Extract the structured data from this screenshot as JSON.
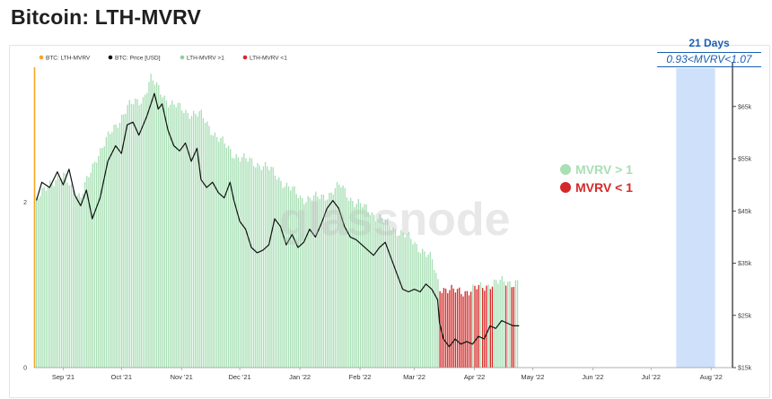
{
  "title": "Bitcoin: LTH-MVRV",
  "callout": {
    "days": "21 Days",
    "range": "0.93<MVRV<1.07"
  },
  "legend": [
    {
      "label": "BTC: LTH-MVRV",
      "color": "#f5a623",
      "muted": true
    },
    {
      "label": "BTC: Price [USD]",
      "color": "#111111",
      "muted": false
    },
    {
      "label": "LTH-MVRV >1",
      "color": "#8fd19e",
      "muted": false
    },
    {
      "label": "LTH-MVRV <1",
      "color": "#d62828",
      "muted": false
    }
  ],
  "annotation_legend": [
    {
      "label": "MVRV > 1",
      "color": "#a8dfb5"
    },
    {
      "label": "MVRV < 1",
      "color": "#d62828"
    }
  ],
  "watermark": "glassnode",
  "colors": {
    "above": "#a8dfb5",
    "below": "#d62828",
    "price": "#111111",
    "highlight": "#cfe0fb",
    "lth_line": "#f5a623"
  },
  "chart_data": {
    "type": "bar",
    "x_ticks": [
      "Sep '21",
      "Oct '21",
      "Nov '21",
      "Dec '21",
      "Jan '22",
      "Feb '22",
      "Mar '22",
      "Apr '22",
      "May '22",
      "Jun '22",
      "Jul '22",
      "Aug '22"
    ],
    "left_axis": {
      "ticks": [
        "0",
        "2"
      ],
      "ylim": [
        0,
        3.6
      ]
    },
    "right_axis": {
      "ticks": [
        "$15k",
        "$25k",
        "$35k",
        "$45k",
        "$55k",
        "$65k"
      ],
      "ylim": [
        15000,
        72000
      ],
      "scale": "linear"
    },
    "highlight_window": {
      "start": "2022-07-14",
      "end": "2022-08-03"
    },
    "mvrv_series": [
      [
        1.2,
        2.0
      ],
      [
        8.0,
        2.25
      ],
      [
        16.0,
        2.3
      ],
      [
        24.0,
        2.05
      ],
      [
        32.0,
        2.55
      ],
      [
        40.0,
        2.85
      ],
      [
        48.0,
        3.15
      ],
      [
        56.0,
        3.25
      ],
      [
        60.0,
        3.5
      ],
      [
        63.0,
        3.4
      ],
      [
        70.0,
        3.2
      ],
      [
        78.0,
        3.1
      ],
      [
        86.0,
        3.05
      ],
      [
        94.0,
        2.8
      ],
      [
        102.0,
        2.6
      ],
      [
        110.0,
        2.5
      ],
      [
        118.0,
        2.45
      ],
      [
        124.0,
        2.35
      ],
      [
        130.0,
        2.2
      ],
      [
        138.0,
        2.05
      ],
      [
        146.0,
        2.05
      ],
      [
        152.0,
        2.1
      ],
      [
        158.0,
        2.2
      ],
      [
        165.0,
        2.0
      ],
      [
        173.0,
        1.9
      ],
      [
        181.0,
        1.75
      ],
      [
        188.0,
        1.65
      ],
      [
        194.0,
        1.55
      ],
      [
        199.0,
        1.45
      ],
      [
        205.0,
        1.3
      ],
      [
        209.0,
        0.98
      ],
      [
        216.0,
        0.92
      ],
      [
        224.0,
        0.93
      ],
      [
        230.0,
        0.97
      ],
      [
        236.0,
        1.02
      ],
      [
        244.0,
        1.04
      ],
      [
        250.0,
        1.03
      ]
    ],
    "price_series": [
      [
        1.2,
        47000
      ],
      [
        4.0,
        50500
      ],
      [
        8.0,
        49500
      ],
      [
        12.0,
        52500
      ],
      [
        15.0,
        50000
      ],
      [
        18.0,
        53000
      ],
      [
        21.0,
        48000
      ],
      [
        24.0,
        46000
      ],
      [
        27.0,
        49000
      ],
      [
        30.0,
        43500
      ],
      [
        34.0,
        47500
      ],
      [
        38.0,
        54500
      ],
      [
        42.0,
        57500
      ],
      [
        45.0,
        56000
      ],
      [
        48.0,
        61500
      ],
      [
        51.0,
        62000
      ],
      [
        54.0,
        59500
      ],
      [
        58.0,
        63000
      ],
      [
        62.0,
        67500
      ],
      [
        64.0,
        64500
      ],
      [
        66.0,
        65500
      ],
      [
        69.0,
        60500
      ],
      [
        72.0,
        57500
      ],
      [
        75.0,
        56500
      ],
      [
        78.0,
        58000
      ],
      [
        81.0,
        54500
      ],
      [
        84.0,
        57000
      ],
      [
        86.0,
        51000
      ],
      [
        89.0,
        49500
      ],
      [
        92.0,
        50500
      ],
      [
        95.0,
        48500
      ],
      [
        98.0,
        47500
      ],
      [
        101.0,
        50500
      ],
      [
        103.0,
        47000
      ],
      [
        106.0,
        43000
      ],
      [
        109.0,
        41500
      ],
      [
        112.0,
        38000
      ],
      [
        115.0,
        37000
      ],
      [
        118.0,
        37500
      ],
      [
        121.0,
        38500
      ],
      [
        124.0,
        43500
      ],
      [
        127.0,
        42000
      ],
      [
        130.0,
        38500
      ],
      [
        133.0,
        40500
      ],
      [
        136.0,
        38000
      ],
      [
        139.0,
        39000
      ],
      [
        142.0,
        41500
      ],
      [
        145.0,
        40000
      ],
      [
        148.0,
        42500
      ],
      [
        151.0,
        45500
      ],
      [
        154.0,
        47000
      ],
      [
        157.0,
        45500
      ],
      [
        160.0,
        42000
      ],
      [
        163.0,
        40000
      ],
      [
        166.0,
        39500
      ],
      [
        169.0,
        38500
      ],
      [
        172.0,
        37500
      ],
      [
        175.0,
        36500
      ],
      [
        178.0,
        38000
      ],
      [
        181.0,
        39000
      ],
      [
        184.0,
        36000
      ],
      [
        187.0,
        33000
      ],
      [
        190.0,
        30000
      ],
      [
        193.0,
        29500
      ],
      [
        196.0,
        30000
      ],
      [
        199.0,
        29500
      ],
      [
        202.0,
        31000
      ],
      [
        205.0,
        30000
      ],
      [
        208.0,
        28000
      ],
      [
        209.0,
        23500
      ],
      [
        211.0,
        20500
      ],
      [
        214.0,
        19000
      ],
      [
        217.0,
        20500
      ],
      [
        220.0,
        19500
      ],
      [
        223.0,
        20000
      ],
      [
        226.0,
        19500
      ],
      [
        229.0,
        21000
      ],
      [
        232.0,
        20500
      ],
      [
        235.0,
        23000
      ],
      [
        238.0,
        22500
      ],
      [
        241.0,
        24000
      ],
      [
        244.0,
        23500
      ],
      [
        247.0,
        23000
      ],
      [
        250.0,
        23000
      ]
    ]
  }
}
